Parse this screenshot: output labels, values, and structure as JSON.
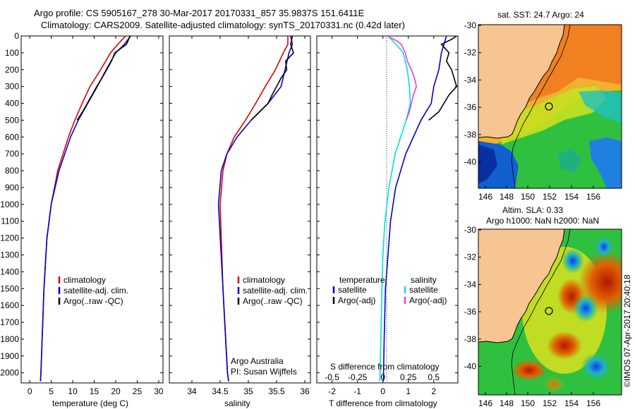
{
  "header": {
    "title_line1": "Argo profile: CS 5905167_278 30-Mar-2017 20170331_857 35.9837S 151.6411E",
    "title_line2": "Climatology: CARS2009. Satellite-adjusted climatology: synTS_20170331.nc (0.42d later)"
  },
  "colors": {
    "climatology": "#e00000",
    "satellite": "#0000d0",
    "argo": "#000000",
    "salinity_sat": "#00e0e0",
    "salinity_argo": "#e040e0",
    "land": "#f4c18c"
  },
  "chart_data": [
    {
      "type": "line",
      "xlabel": "temperature (deg C)",
      "xlim": [
        -2,
        31
      ],
      "xticks": [
        0,
        5,
        10,
        15,
        20,
        25,
        30
      ],
      "ylim": [
        0,
        2060
      ],
      "yticks": [
        0,
        100,
        200,
        300,
        400,
        500,
        600,
        700,
        800,
        900,
        1000,
        1100,
        1200,
        1300,
        1400,
        1500,
        1600,
        1700,
        1800,
        1900,
        2000
      ],
      "legend": [
        "climatology",
        "satellite-adj. clim.",
        "Argo(..raw -QC)"
      ],
      "legend_placement": "lower-center",
      "series": [
        {
          "name": "climatology",
          "color": "#e00000",
          "depth": [
            0,
            50,
            100,
            200,
            300,
            400,
            500,
            600,
            800,
            1000,
            1200,
            1500,
            2000,
            2050
          ],
          "values": [
            22.3,
            20.5,
            18.8,
            16.5,
            14.0,
            12.2,
            10.5,
            9.0,
            6.5,
            5.0,
            4.0,
            3.3,
            2.6,
            2.5
          ]
        },
        {
          "name": "satellite-adj. clim.",
          "color": "#0000d0",
          "depth": [
            0,
            50,
            100,
            200,
            300,
            400,
            500,
            600,
            800,
            1000,
            1200,
            1500,
            2000,
            2050
          ],
          "values": [
            23.5,
            22.0,
            20.0,
            17.8,
            15.7,
            13.5,
            11.3,
            9.5,
            6.8,
            5.0,
            4.0,
            3.3,
            2.6,
            2.5
          ]
        },
        {
          "name": "Argo(..raw -QC)",
          "color": "#000000",
          "depth": [
            0,
            20,
            50,
            100,
            150,
            200,
            250,
            300,
            350,
            400,
            450,
            500
          ],
          "values": [
            23.3,
            23.0,
            22.5,
            19.8,
            19.0,
            17.9,
            16.8,
            15.6,
            14.5,
            13.4,
            12.3,
            11.0
          ]
        }
      ]
    },
    {
      "type": "line",
      "xlabel": "salinity",
      "xlim": [
        33.6,
        36.1
      ],
      "xticks": [
        34,
        34.5,
        35,
        35.5,
        36
      ],
      "ylim": [
        0,
        2060
      ],
      "legend": [
        "climatology",
        "satellite-adj. clim.",
        "Argo(..raw -QC)"
      ],
      "legend_placement": "lower-right",
      "annotation": [
        "Argo Australia",
        "PI: Susan Wijffels"
      ],
      "series": [
        {
          "name": "climatology",
          "color": "#e00000",
          "depth": [
            0,
            50,
            100,
            200,
            300,
            400,
            500,
            600,
            700,
            800,
            1000,
            1500,
            2000,
            2050
          ],
          "values": [
            35.7,
            35.7,
            35.62,
            35.48,
            35.3,
            35.13,
            34.95,
            34.75,
            34.62,
            34.55,
            34.5,
            34.55,
            34.63,
            34.65
          ]
        },
        {
          "name": "satellite-adj. clim.",
          "color": "#0000d0",
          "depth": [
            0,
            50,
            100,
            200,
            300,
            400,
            500,
            600,
            700,
            800,
            1000,
            1500,
            2000,
            2050
          ],
          "values": [
            35.75,
            35.78,
            35.72,
            35.65,
            35.58,
            35.35,
            35.05,
            34.8,
            34.62,
            34.52,
            34.47,
            34.55,
            34.63,
            34.65
          ]
        },
        {
          "name": "Argo(..raw -QC)",
          "color": "#000000",
          "depth": [
            0,
            50,
            100,
            150,
            200,
            250,
            300,
            350,
            400,
            450,
            500
          ],
          "values": [
            35.78,
            35.75,
            35.8,
            35.66,
            35.68,
            35.58,
            35.5,
            35.42,
            35.35,
            35.2,
            35.05
          ]
        }
      ]
    },
    {
      "type": "line",
      "xlabel": "T difference from climatology",
      "xlabel2": "S difference from climatology",
      "xlim": [
        -2.6,
        2.95
      ],
      "xticks": [
        -2,
        -1,
        0,
        1,
        2
      ],
      "xticks2": [
        -0.5,
        -0.25,
        0,
        0.25,
        0.5
      ],
      "ylim": [
        0,
        2060
      ],
      "legend_left": {
        "title": "temperature",
        "items": [
          "satellite",
          "Argo(-adj)"
        ]
      },
      "legend_right": {
        "title": "salinity",
        "items": [
          "satellite",
          "Argo(-adj)"
        ]
      },
      "legend_placement": "lower-center",
      "series": [
        {
          "name": "T satellite",
          "color": "#0000d0",
          "depth": [
            0,
            50,
            100,
            200,
            300,
            400,
            500,
            700,
            900,
            1100,
            1300,
            1500,
            1800,
            2050
          ],
          "values": [
            2.5,
            2.4,
            2.3,
            2.2,
            2.0,
            1.9,
            1.5,
            0.9,
            0.5,
            0.3,
            0.2,
            0.1,
            0.05,
            0.02
          ]
        },
        {
          "name": "T Argo(-adj)",
          "color": "#000000",
          "depth": [
            0,
            20,
            50,
            100,
            150,
            200,
            250,
            300,
            350,
            400,
            450,
            500
          ],
          "values": [
            2.9,
            2.7,
            2.3,
            2.6,
            2.5,
            2.7,
            2.8,
            2.9,
            2.6,
            2.4,
            2.2,
            1.8
          ]
        },
        {
          "name": "S satellite",
          "color": "#00e0e0",
          "depth": [
            0,
            50,
            100,
            200,
            300,
            400,
            500,
            700,
            900,
            1100,
            1300,
            1500,
            1800,
            2050
          ],
          "values": [
            0.05,
            0.13,
            0.2,
            0.24,
            0.26,
            0.27,
            0.23,
            0.12,
            0.06,
            0.02,
            0.0,
            -0.01,
            -0.02,
            -0.03
          ]
        },
        {
          "name": "S Argo(-adj)",
          "color": "#e040e0",
          "depth": [
            0,
            30,
            50,
            100,
            150,
            200,
            250,
            300,
            350,
            400,
            450,
            500
          ],
          "values": [
            0.04,
            0.14,
            0.18,
            0.22,
            0.24,
            0.28,
            0.31,
            0.33,
            0.3,
            0.28,
            0.26,
            0.23
          ]
        }
      ]
    }
  ],
  "maps": [
    {
      "title": "sat. SST: 24.7  Argo: 24",
      "lon_ticks": [
        "146",
        "148",
        "150",
        "152",
        "154",
        "156"
      ],
      "lat_ticks": [
        "-30",
        "-32",
        "-34",
        "-36",
        "-38",
        "-40"
      ]
    },
    {
      "title_line1": "Altim. SLA: 0.33",
      "title_line2": "Argo h1000: NaN h2000: NaN",
      "lon_ticks": [
        "146",
        "148",
        "150",
        "152",
        "154",
        "156"
      ],
      "lat_ticks": [
        "-30",
        "-32",
        "-34",
        "-36",
        "-38",
        "-40"
      ]
    }
  ],
  "credit": "©IMOS 07-Apr-2017 20:40:18"
}
